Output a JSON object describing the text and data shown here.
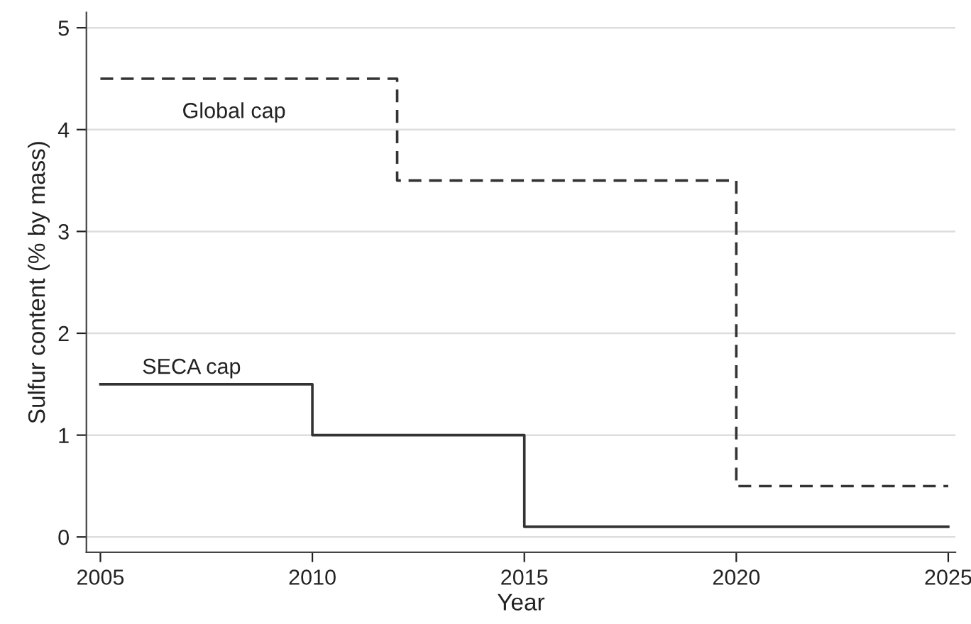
{
  "chart_data": {
    "type": "step",
    "xlabel": "Year",
    "ylabel": "Sulfur content (% by mass)",
    "xlim": [
      2004.67,
      2025.17
    ],
    "ylim": [
      -0.15,
      5.15
    ],
    "xticks": [
      2005,
      2010,
      2015,
      2020,
      2025
    ],
    "yticks": [
      0,
      1,
      2,
      3,
      4,
      5
    ],
    "grid": "y",
    "series": [
      {
        "name": "Global cap",
        "color": "#333333",
        "line_style": "dashed",
        "x": [
          2005,
          2012,
          2020,
          2025
        ],
        "values": [
          4.5,
          3.5,
          0.5,
          0.5
        ]
      },
      {
        "name": "SECA cap",
        "color": "#333333",
        "line_style": "solid",
        "x": [
          2005,
          2010,
          2015,
          2025
        ],
        "values": [
          1.5,
          1.0,
          0.1,
          0.1
        ]
      }
    ]
  }
}
